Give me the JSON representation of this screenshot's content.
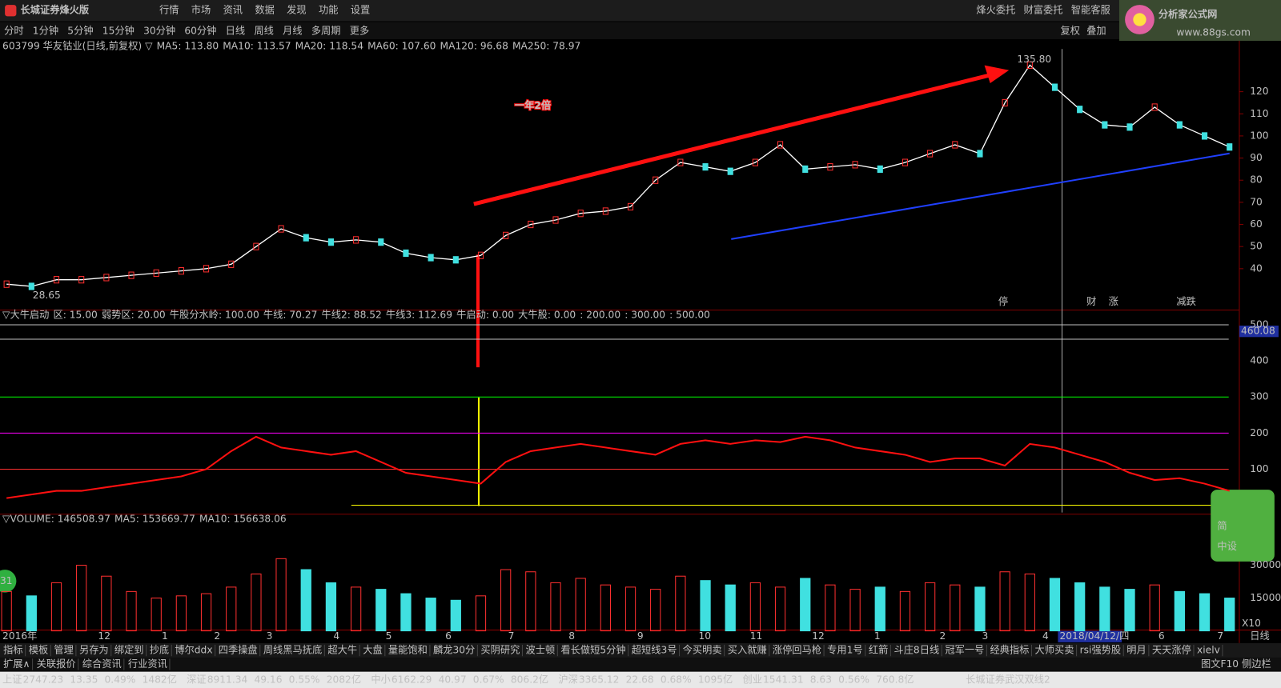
{
  "titlebar": {
    "app_name": "长城证券烽火版",
    "menu": [
      "行情",
      "市场",
      "资讯",
      "数据",
      "发现",
      "功能",
      "设置"
    ],
    "right_menu": [
      "烽火委托",
      "财富委托",
      "智能客服"
    ],
    "logo": "分析家公式网",
    "logo_url": "www.88gs.com"
  },
  "period_tabs": {
    "items": [
      "分时",
      "1分钟",
      "5分钟",
      "15分钟",
      "30分钟",
      "60分钟",
      "日线",
      "周线",
      "月线",
      "多周期",
      "更多"
    ],
    "active": 6,
    "right_buttons": [
      "复权",
      "叠加"
    ]
  },
  "price_panel": {
    "header": [
      {
        "text": "603799 华友钴业(日线,前复权) ▽",
        "color": "#c0c0c0"
      },
      {
        "text": "MA5: 113.80",
        "color": "#ffffff"
      },
      {
        "text": "MA10: 113.57",
        "color": "#ffff00"
      },
      {
        "text": "MA20: 118.54",
        "color": "#ff00ff"
      },
      {
        "text": "MA60: 107.60",
        "color": "#00ff00"
      },
      {
        "text": "MA120: 96.68",
        "color": "#c0c0c0"
      },
      {
        "text": "MA250: 78.97",
        "color": "#3060ff"
      }
    ],
    "ylim": [
      22,
      143
    ],
    "yticks": [
      40,
      50,
      60,
      70,
      80,
      90,
      100,
      110,
      120
    ],
    "high_label": "135.80",
    "low_label": "28.65",
    "annotation": "一年2倍",
    "markers": [
      "停",
      "财",
      "涨",
      "减跌"
    ],
    "closes": [
      33,
      32,
      35,
      35,
      36,
      37,
      38,
      39,
      40,
      42,
      50,
      58,
      54,
      52,
      53,
      52,
      47,
      45,
      44,
      46,
      55,
      60,
      62,
      65,
      66,
      68,
      80,
      88,
      86,
      84,
      88,
      96,
      85,
      86,
      87,
      85,
      88,
      92,
      96,
      92,
      115,
      132,
      122,
      112,
      105,
      104,
      113,
      105,
      100,
      95
    ]
  },
  "indicator_panel": {
    "header": [
      {
        "text": "▽大牛启动",
        "color": "#c0c0c0"
      },
      {
        "text": "区: 15.00",
        "color": "#00ff00"
      },
      {
        "text": "弱势区: 20.00",
        "color": "#00ff00"
      },
      {
        "text": "牛股分水岭: 100.00",
        "color": "#ff3030"
      },
      {
        "text": "牛线: 70.27",
        "color": "#ff3030"
      },
      {
        "text": "牛线2: 88.52",
        "color": "#ffffff"
      },
      {
        "text": "牛线3: 112.69",
        "color": "#3060ff"
      },
      {
        "text": "牛启动: 0.00",
        "color": "#ffffff"
      },
      {
        "text": "大牛股: 0.00",
        "color": "#ffff00"
      },
      {
        "text": ": 200.00",
        "color": "#ff00ff"
      },
      {
        "text": ": 300.00",
        "color": "#00ff00"
      },
      {
        "text": ": 500.00",
        "color": "#ffffff"
      }
    ],
    "ylim": [
      -20,
      536
    ],
    "yticks": [
      100,
      200,
      300,
      400,
      500
    ],
    "levels": [
      {
        "value": 100,
        "color": "#ff3030"
      },
      {
        "value": 200,
        "color": "#ff00ff"
      },
      {
        "value": 300,
        "color": "#00ff00"
      },
      {
        "value": 460.08,
        "color": "#c0c0c0"
      },
      {
        "value": 500,
        "color": "#c0c0c0"
      }
    ],
    "current_label": "460.08",
    "values": [
      20,
      30,
      40,
      40,
      50,
      60,
      70,
      80,
      100,
      150,
      190,
      160,
      150,
      140,
      150,
      120,
      90,
      80,
      70,
      60,
      120,
      150,
      160,
      170,
      160,
      150,
      140,
      170,
      180,
      170,
      180,
      175,
      190,
      180,
      160,
      150,
      140,
      120,
      130,
      130,
      110,
      170,
      160,
      140,
      120,
      90,
      70,
      75,
      60,
      40
    ]
  },
  "volume_panel": {
    "header": [
      {
        "text": "▽VOLUME: 146508.97",
        "color": "#c0c0c0"
      },
      {
        "text": "MA5: 153669.77",
        "color": "#ffffff"
      },
      {
        "text": "MA10: 156638.06",
        "color": "#ffff00"
      }
    ],
    "ylim": [
      0,
      47000
    ],
    "yticks": [
      15000,
      30000
    ],
    "unit_label": "X10",
    "badge": "31",
    "values": [
      18000,
      16000,
      22000,
      30000,
      25000,
      18000,
      15000,
      16000,
      17000,
      20000,
      26000,
      33000,
      28000,
      22000,
      20000,
      19000,
      17000,
      15000,
      14000,
      16000,
      28000,
      27000,
      22000,
      24000,
      21000,
      20000,
      19000,
      25000,
      23000,
      21000,
      22000,
      20000,
      24000,
      21000,
      19000,
      20000,
      18000,
      22000,
      21000,
      20000,
      27000,
      26000,
      24000,
      22000,
      20000,
      19000,
      21000,
      18000,
      17000,
      15000
    ]
  },
  "x_axis": {
    "labels": [
      "2016年",
      "12",
      "1",
      "2",
      "3",
      "4",
      "5",
      "6",
      "7",
      "8",
      "9",
      "10",
      "11",
      "12",
      "1",
      "2",
      "3",
      "4",
      "2018/04/12/四",
      "6",
      "7"
    ],
    "period": "日线"
  },
  "side_buttons": [
    "简",
    "中设"
  ],
  "indicator_tabs": [
    "指标",
    "模板",
    "管理",
    "另存为",
    "绑定到",
    "抄底",
    "博尔ddx",
    "四季操盘",
    "周线黑马抚底",
    "超大牛",
    "大盘",
    "量能饱和",
    "麟龙30分",
    "买阴研究",
    "波士顿",
    "看长做短5分钟",
    "超短线3号",
    "今买明卖",
    "买入就赚",
    "涨停回马枪",
    "专用1号",
    "红箭",
    "斗庄8日线",
    "冠军一号",
    "经典指标",
    "大师买卖",
    "rsi强势股",
    "明月",
    "天天涨停",
    "xielv"
  ],
  "info_tabs": [
    "扩展∧",
    "关联报价",
    "综合资讯",
    "行业资讯"
  ],
  "info_right": [
    "图文F10",
    "侧边栏"
  ],
  "status_bar": [
    {
      "name": "上证",
      "price": "2747.23",
      "change": "13.35",
      "pct": "0.49%",
      "amount": "1482亿"
    },
    {
      "name": "深证",
      "price": "8911.34",
      "change": "49.16",
      "pct": "0.55%",
      "amount": "2082亿"
    },
    {
      "name": "中小",
      "price": "6162.29",
      "change": "40.97",
      "pct": "0.67%",
      "amount": "806.2亿"
    },
    {
      "name": "沪深",
      "price": "3365.12",
      "change": "22.68",
      "pct": "0.68%",
      "amount": "1095亿"
    },
    {
      "name": "创业",
      "price": "1541.31",
      "change": "8.63",
      "pct": "0.56%",
      "amount": "760.8亿"
    }
  ],
  "status_right": "长城证券武汉双线2"
}
